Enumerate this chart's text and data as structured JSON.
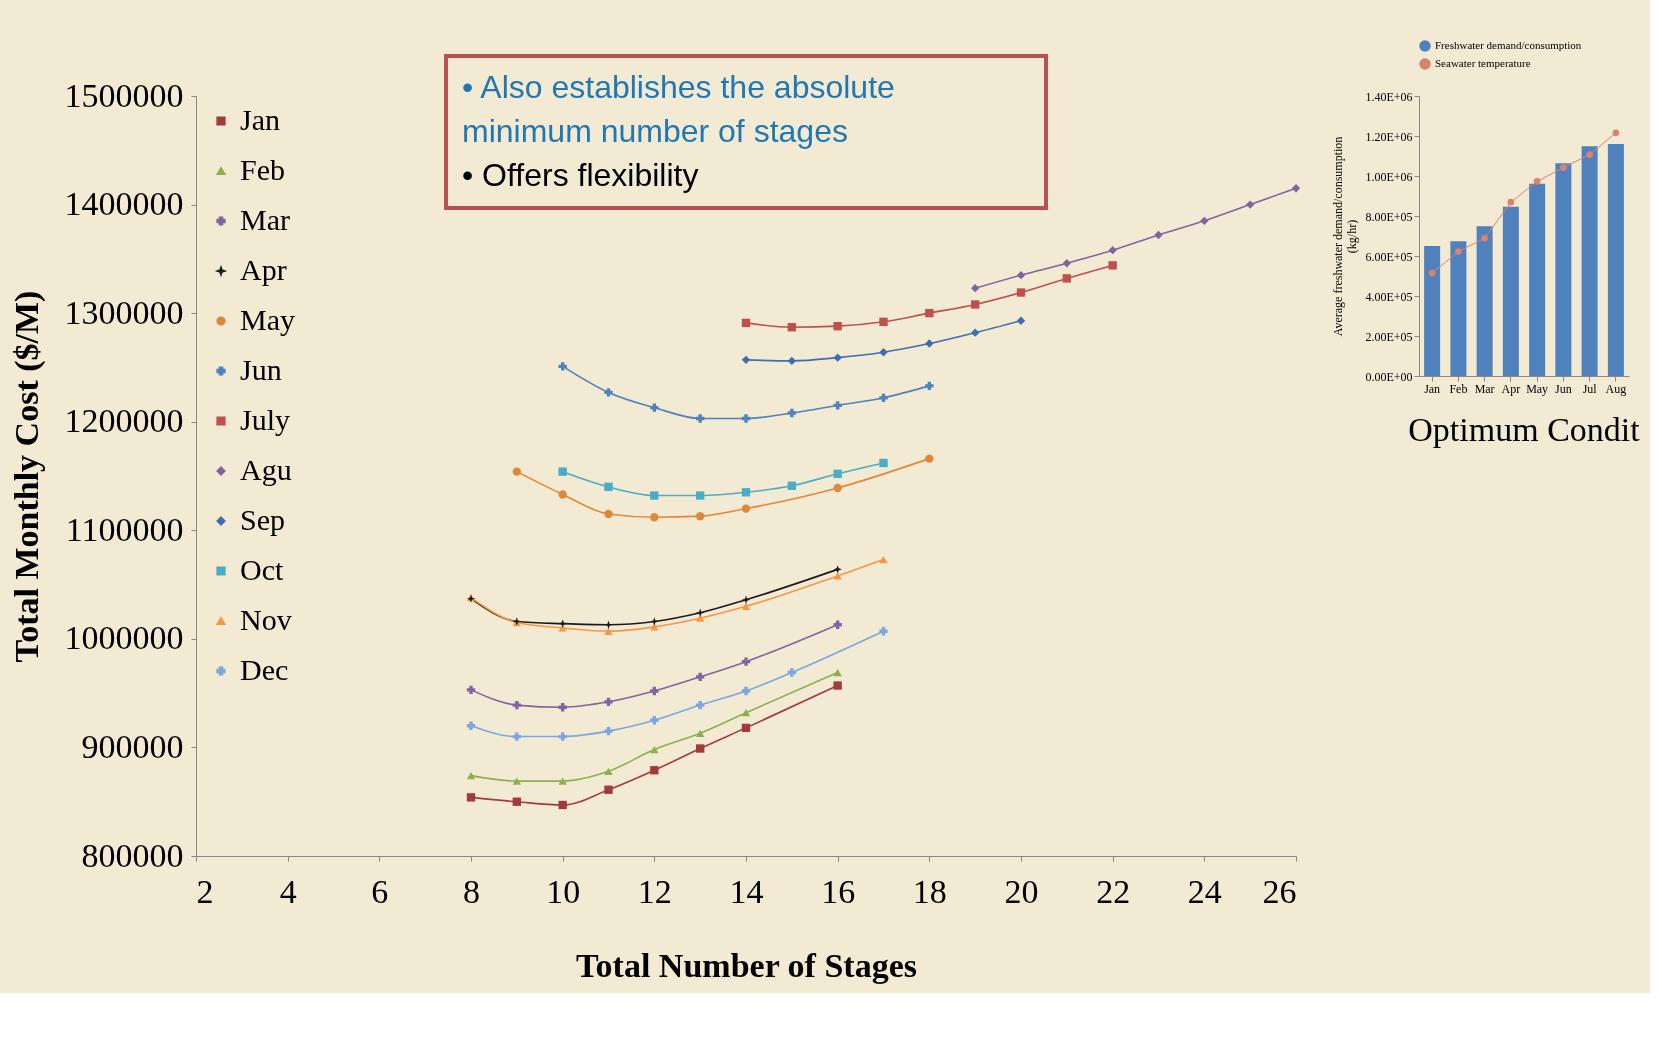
{
  "chart_data": [
    {
      "type": "line",
      "xlabel": "Total Number of Stages",
      "ylabel": "Total Monthly Cost ($/M)",
      "xlim": [
        2,
        26
      ],
      "xticks": [
        2,
        4,
        6,
        8,
        10,
        12,
        14,
        16,
        18,
        20,
        22,
        24,
        26
      ],
      "ylim": [
        800000,
        1500000
      ],
      "yticks": [
        800000,
        900000,
        1000000,
        1100000,
        1200000,
        1300000,
        1400000,
        1500000
      ],
      "grid": false,
      "legend": "top left",
      "annotations": [
        "• Also establishes the absolute minimum number of stages",
        "• Offers flexibility"
      ],
      "series": [
        {
          "name": "Jan",
          "color": "#a33b3b",
          "marker": "square",
          "x": [
            8,
            9,
            10,
            11,
            12,
            13,
            14,
            16
          ],
          "values": [
            854000,
            850000,
            847000,
            861000,
            879000,
            899000,
            918000,
            957000
          ]
        },
        {
          "name": "Feb",
          "color": "#8cb04f",
          "marker": "triangle",
          "x": [
            8,
            9,
            10,
            11,
            12,
            13,
            14,
            16
          ],
          "values": [
            874000,
            869000,
            869000,
            878000,
            898000,
            913000,
            932000,
            969000
          ]
        },
        {
          "name": "Mar",
          "color": "#8064a2",
          "marker": "cross",
          "x": [
            8,
            9,
            10,
            11,
            12,
            13,
            14,
            16
          ],
          "values": [
            953000,
            939000,
            937000,
            942000,
            952000,
            965000,
            979000,
            1013000
          ]
        },
        {
          "name": "Apr",
          "color": "#1a1a1a",
          "marker": "star",
          "x": [
            8,
            9,
            10,
            11,
            12,
            13,
            14,
            16
          ],
          "values": [
            1037000,
            1016000,
            1014000,
            1013000,
            1016000,
            1024000,
            1036000,
            1064000
          ]
        },
        {
          "name": "May",
          "color": "#e0883a",
          "marker": "circle",
          "x": [
            9,
            10,
            11,
            12,
            13,
            14,
            16,
            18
          ],
          "values": [
            1154000,
            1133000,
            1115000,
            1112000,
            1113000,
            1120000,
            1139000,
            1166000
          ]
        },
        {
          "name": "Jun",
          "color": "#4f81bd",
          "marker": "cross",
          "x": [
            10,
            11,
            12,
            13,
            14,
            15,
            16,
            17,
            18
          ],
          "values": [
            1251000,
            1227000,
            1213000,
            1203000,
            1203000,
            1208000,
            1215000,
            1222000,
            1233000
          ]
        },
        {
          "name": "July",
          "color": "#c0504d",
          "marker": "square",
          "x": [
            14,
            15,
            16,
            17,
            18,
            19,
            20,
            21,
            22
          ],
          "values": [
            1291000,
            1287000,
            1288000,
            1292000,
            1300000,
            1308000,
            1319000,
            1332000,
            1344000
          ]
        },
        {
          "name": "Agu",
          "color": "#8064a2",
          "marker": "diamond",
          "x": [
            19,
            20,
            21,
            22,
            23,
            24,
            25,
            26
          ],
          "values": [
            1323000,
            1335000,
            1346000,
            1358000,
            1372000,
            1385000,
            1400000,
            1415000
          ]
        },
        {
          "name": "Sep",
          "color": "#3d6fb0",
          "marker": "diamond",
          "x": [
            14,
            15,
            16,
            17,
            18,
            19,
            20
          ],
          "values": [
            1257000,
            1256000,
            1259000,
            1264000,
            1272000,
            1282000,
            1293000
          ]
        },
        {
          "name": "Oct",
          "color": "#4bacc6",
          "marker": "square",
          "x": [
            10,
            11,
            12,
            13,
            14,
            15,
            16,
            17
          ],
          "values": [
            1154000,
            1140000,
            1132000,
            1132000,
            1135000,
            1141000,
            1152000,
            1162000
          ]
        },
        {
          "name": "Nov",
          "color": "#f79646",
          "marker": "triangle",
          "x": [
            8,
            9,
            10,
            11,
            12,
            13,
            14,
            16,
            17
          ],
          "values": [
            1038000,
            1015000,
            1010000,
            1007000,
            1011000,
            1019000,
            1030000,
            1058000,
            1073000
          ]
        },
        {
          "name": "Dec",
          "color": "#7ba7e0",
          "marker": "cross",
          "x": [
            8,
            9,
            10,
            11,
            12,
            13,
            14,
            15,
            17
          ],
          "values": [
            920000,
            910000,
            910000,
            915000,
            925000,
            939000,
            952000,
            969000,
            1007000
          ]
        }
      ]
    },
    {
      "type": "bar",
      "categories": [
        "Jan",
        "Feb",
        "Mar",
        "Apr",
        "May",
        "Jun",
        "Jul",
        "Aug"
      ],
      "ylabel": "Average freshwater demand/consumption (kg/hr)",
      "ylim": [
        0,
        1400000
      ],
      "yticks": [
        {
          "value": 0,
          "label": "0.00E+00"
        },
        {
          "value": 200000,
          "label": "2.00E+05"
        },
        {
          "value": 400000,
          "label": "4.00E+05"
        },
        {
          "value": 600000,
          "label": "6.00E+05"
        },
        {
          "value": 800000,
          "label": "8.00E+05"
        },
        {
          "value": 1000000,
          "label": "1.00E+06"
        },
        {
          "value": 1200000,
          "label": "1.20E+06"
        },
        {
          "value": 1400000,
          "label": "1.40E+06"
        }
      ],
      "grid": false,
      "legend": "top",
      "annotations": [
        "Optimum Condit"
      ],
      "series": [
        {
          "name": "Freshwater demand/consumption",
          "type": "bar",
          "color": "#4f81bd",
          "values": [
            650000,
            674000,
            749000,
            846000,
            961000,
            1064000,
            1149000,
            1160000
          ]
        },
        {
          "name": "Seawater temperature",
          "type": "line",
          "color": "#d9826e",
          "marker": "circle",
          "values": [
            515000,
            622000,
            689000,
            869000,
            973000,
            1042000,
            1107000,
            1216000
          ]
        }
      ]
    }
  ]
}
